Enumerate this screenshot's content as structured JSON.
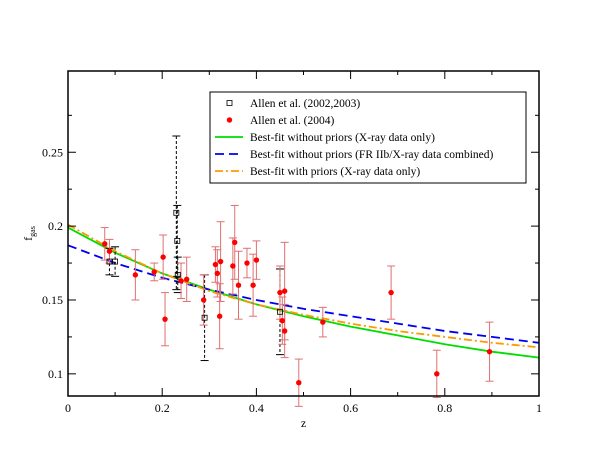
{
  "chart_data": {
    "type": "scatter",
    "xlabel": "z",
    "ylabel": "f",
    "ylabel_sub": "gas",
    "xlim": [
      0,
      1
    ],
    "ylim": [
      0.085,
      0.305
    ],
    "x_ticks": [
      0,
      0.2,
      0.4,
      0.6,
      0.8,
      1
    ],
    "x_tick_labels": [
      "0",
      "0.2",
      "0.4",
      "0.6",
      "0.8",
      "1"
    ],
    "y_ticks": [
      0.1,
      0.15,
      0.2,
      0.25
    ],
    "y_tick_labels": [
      "0.1",
      "0.15",
      "0.2",
      "0.25"
    ],
    "legend_position": "top-right",
    "series": [
      {
        "name": "Allen et al. (2002,2003)",
        "kind": "scatter",
        "marker": "open-square",
        "color": "#000000",
        "error_style": "dashed",
        "points": [
          {
            "x": 0.088,
            "y": 0.176,
            "err": 0.009
          },
          {
            "x": 0.1,
            "y": 0.176,
            "err": 0.01
          },
          {
            "x": 0.23,
            "y": 0.209,
            "err": 0.052
          },
          {
            "x": 0.232,
            "y": 0.19,
            "err": 0.024
          },
          {
            "x": 0.233,
            "y": 0.167,
            "err": 0.012
          },
          {
            "x": 0.29,
            "y": 0.138,
            "err": 0.029
          },
          {
            "x": 0.45,
            "y": 0.142,
            "err": 0.029
          }
        ]
      },
      {
        "name": "Allen et al. (2004)",
        "kind": "scatter",
        "marker": "filled-circle",
        "color": "#ff0000",
        "error_color": "#e07070",
        "points": [
          {
            "x": 0.078,
            "y": 0.188,
            "err": 0.011
          },
          {
            "x": 0.088,
            "y": 0.183,
            "err": 0.008
          },
          {
            "x": 0.143,
            "y": 0.167,
            "err": 0.017
          },
          {
            "x": 0.183,
            "y": 0.169,
            "err": 0.006
          },
          {
            "x": 0.202,
            "y": 0.179,
            "err": 0.015
          },
          {
            "x": 0.206,
            "y": 0.137,
            "err": 0.018
          },
          {
            "x": 0.24,
            "y": 0.163,
            "err": 0.012
          },
          {
            "x": 0.252,
            "y": 0.164,
            "err": 0.015
          },
          {
            "x": 0.288,
            "y": 0.15,
            "err": 0.017
          },
          {
            "x": 0.313,
            "y": 0.174,
            "err": 0.012
          },
          {
            "x": 0.317,
            "y": 0.168,
            "err": 0.016
          },
          {
            "x": 0.322,
            "y": 0.139,
            "err": 0.022
          },
          {
            "x": 0.324,
            "y": 0.176,
            "err": 0.027
          },
          {
            "x": 0.35,
            "y": 0.173,
            "err": 0.019
          },
          {
            "x": 0.354,
            "y": 0.189,
            "err": 0.025
          },
          {
            "x": 0.362,
            "y": 0.16,
            "err": 0.023
          },
          {
            "x": 0.38,
            "y": 0.175,
            "err": 0.01
          },
          {
            "x": 0.393,
            "y": 0.16,
            "err": 0.021
          },
          {
            "x": 0.4,
            "y": 0.177,
            "err": 0.013
          },
          {
            "x": 0.45,
            "y": 0.155,
            "err": 0.018
          },
          {
            "x": 0.455,
            "y": 0.136,
            "err": 0.016
          },
          {
            "x": 0.46,
            "y": 0.156,
            "err": 0.033
          },
          {
            "x": 0.46,
            "y": 0.129,
            "err": 0.018
          },
          {
            "x": 0.49,
            "y": 0.094,
            "err": 0.016
          },
          {
            "x": 0.541,
            "y": 0.135,
            "err": 0.01
          },
          {
            "x": 0.686,
            "y": 0.155,
            "err": 0.018
          },
          {
            "x": 0.783,
            "y": 0.1,
            "err": 0.016
          },
          {
            "x": 0.895,
            "y": 0.115,
            "err": 0.02
          }
        ]
      },
      {
        "name": "Best-fit without priors (X-ray data only)",
        "kind": "line",
        "color": "#00dd00",
        "dash": "solid",
        "x": [
          0,
          0.1,
          0.2,
          0.3,
          0.4,
          0.5,
          0.6,
          0.7,
          0.8,
          0.9,
          1.0
        ],
        "y": [
          0.199,
          0.182,
          0.168,
          0.157,
          0.147,
          0.139,
          0.132,
          0.126,
          0.12,
          0.115,
          0.111
        ]
      },
      {
        "name": "Best-fit without priors (FR IIb/X-ray data combined)",
        "kind": "line",
        "color": "#0000ee",
        "dash": "dashed",
        "x": [
          0,
          0.1,
          0.2,
          0.3,
          0.4,
          0.5,
          0.6,
          0.7,
          0.8,
          0.9,
          1.0
        ],
        "y": [
          0.187,
          0.175,
          0.165,
          0.157,
          0.15,
          0.144,
          0.139,
          0.134,
          0.129,
          0.125,
          0.121
        ]
      },
      {
        "name": "Best-fit with priors (X-ray data only)",
        "kind": "line",
        "color": "#ff9900",
        "dash": "dash-dot",
        "x": [
          0,
          0.1,
          0.2,
          0.3,
          0.4,
          0.5,
          0.6,
          0.7,
          0.8,
          0.9,
          1.0
        ],
        "y": [
          0.201,
          0.183,
          0.168,
          0.156,
          0.147,
          0.14,
          0.134,
          0.129,
          0.125,
          0.121,
          0.118
        ]
      }
    ]
  }
}
